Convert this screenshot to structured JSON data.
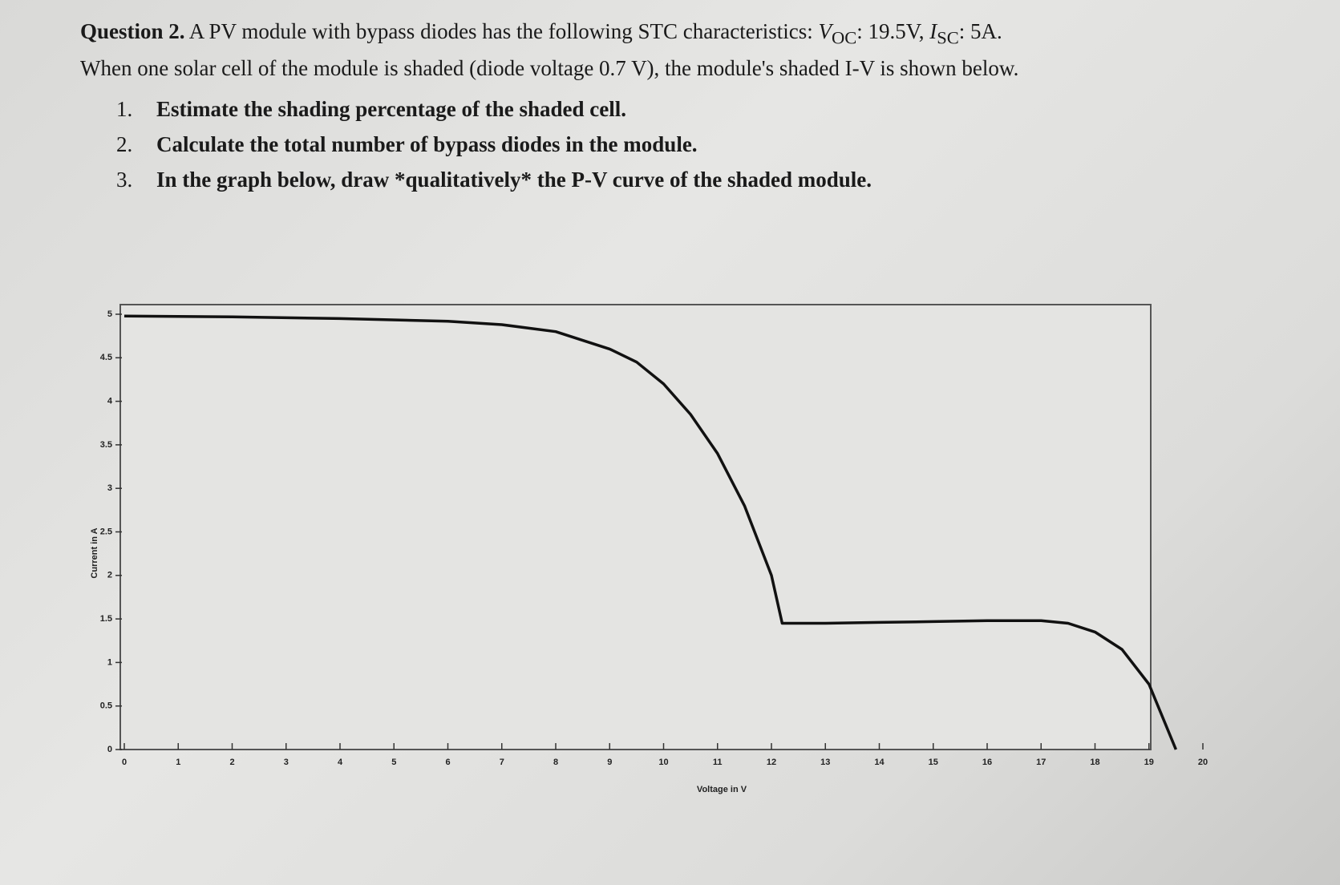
{
  "question": {
    "label": "Question 2.",
    "intro": "A PV module with bypass diodes has the following STC characteristics:",
    "voc_symbol": "V",
    "voc_sub": "OC",
    "voc_value": ": 19.5V, ",
    "isc_symbol": "I",
    "isc_sub": "SC",
    "isc_value": ": 5A.",
    "context": "When one solar cell of the module is shaded (diode voltage 0.7 V), the module's shaded I-V is shown below.",
    "items": [
      {
        "number": "1.",
        "text": "Estimate the shading percentage of the shaded cell."
      },
      {
        "number": "2.",
        "text": "Calculate the total number of bypass diodes in the module."
      },
      {
        "number": "3.",
        "text": "In the graph below, draw *qualitatively* the P-V curve of the shaded module."
      }
    ]
  },
  "chart_data": {
    "type": "line",
    "x_label": "Voltage in V",
    "y_label": "Current in A",
    "x": [
      0,
      2,
      4,
      6,
      7,
      8,
      9,
      9.5,
      10,
      10.5,
      11,
      11.5,
      12,
      12.2,
      13,
      14,
      15,
      16,
      17,
      17.5,
      18,
      18.5,
      19,
      19.5
    ],
    "values": [
      4.98,
      4.97,
      4.95,
      4.92,
      4.88,
      4.8,
      4.6,
      4.45,
      4.2,
      3.85,
      3.4,
      2.8,
      2.0,
      1.45,
      1.45,
      1.46,
      1.47,
      1.48,
      1.48,
      1.45,
      1.35,
      1.15,
      0.75,
      0
    ],
    "color": "#111111",
    "xlim": [
      0,
      20
    ],
    "ylim": [
      0,
      5
    ],
    "xticks": [
      0,
      1,
      2,
      3,
      4,
      5,
      6,
      7,
      8,
      9,
      10,
      11,
      12,
      13,
      14,
      15,
      16,
      17,
      18,
      19,
      20
    ],
    "yticks": [
      0,
      0.5,
      1,
      1.5,
      2,
      2.5,
      3,
      3.5,
      4,
      4.5,
      5
    ]
  }
}
